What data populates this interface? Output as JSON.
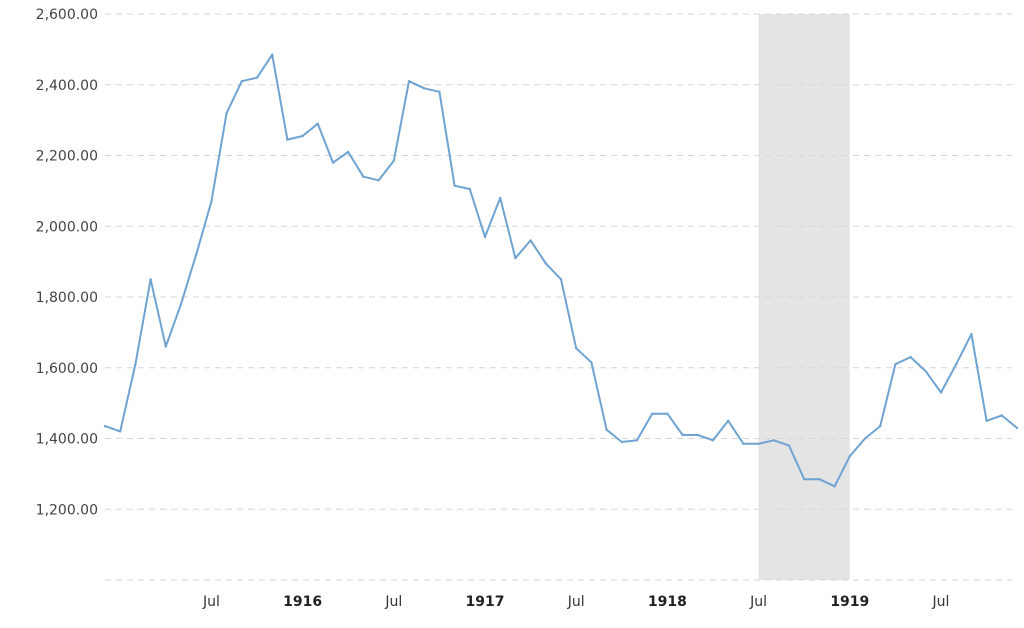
{
  "chart_data": {
    "type": "line",
    "title": "",
    "xlabel": "",
    "ylabel": "",
    "ylim": [
      1000,
      2600
    ],
    "grid": true,
    "y_ticks": [
      "1,200.00",
      "1,400.00",
      "1,600.00",
      "1,800.00",
      "2,000.00",
      "2,200.00",
      "2,400.00",
      "2,600.00"
    ],
    "y_tick_values": [
      1200,
      1400,
      1600,
      1800,
      2000,
      2200,
      2400,
      2600
    ],
    "x_ticks": [
      {
        "label": "Jul",
        "date": "1915-07",
        "major": false
      },
      {
        "label": "1916",
        "date": "1916-01",
        "major": true
      },
      {
        "label": "Jul",
        "date": "1916-07",
        "major": false
      },
      {
        "label": "1917",
        "date": "1917-01",
        "major": true
      },
      {
        "label": "Jul",
        "date": "1917-07",
        "major": false
      },
      {
        "label": "1918",
        "date": "1918-01",
        "major": true
      },
      {
        "label": "Jul",
        "date": "1918-07",
        "major": false
      },
      {
        "label": "1919",
        "date": "1919-01",
        "major": true
      },
      {
        "label": "Jul",
        "date": "1919-07",
        "major": false
      }
    ],
    "shaded_ranges": [
      {
        "start": "1918-07",
        "end": "1919-01",
        "color": "#e4e4e4"
      }
    ],
    "series": [
      {
        "color": "#6fa3d1",
        "x": [
          "1914-12",
          "1915-01",
          "1915-02",
          "1915-03",
          "1915-04",
          "1915-05",
          "1915-06",
          "1915-07",
          "1915-08",
          "1915-09",
          "1915-10",
          "1915-11",
          "1915-12",
          "1916-01",
          "1916-02",
          "1916-03",
          "1916-04",
          "1916-05",
          "1916-06",
          "1916-07",
          "1916-08",
          "1916-09",
          "1916-10",
          "1916-11",
          "1916-12",
          "1917-01",
          "1917-02",
          "1917-03",
          "1917-04",
          "1917-05",
          "1917-06",
          "1917-07",
          "1917-08",
          "1917-09",
          "1917-10",
          "1917-11",
          "1917-12",
          "1918-01",
          "1918-02",
          "1918-03",
          "1918-04",
          "1918-05",
          "1918-06",
          "1918-07",
          "1918-08",
          "1918-09",
          "1918-10",
          "1918-11",
          "1918-12",
          "1919-01",
          "1919-02",
          "1919-03",
          "1919-04",
          "1919-05",
          "1919-06",
          "1919-07",
          "1919-08",
          "1919-09",
          "1919-10",
          "1919-11",
          "1919-12"
        ],
        "values": [
          1435,
          1420,
          1610,
          1850,
          1660,
          1780,
          1920,
          2070,
          2320,
          2410,
          2420,
          2485,
          2245,
          2255,
          2290,
          2180,
          2210,
          2140,
          2130,
          2185,
          2410,
          2390,
          2380,
          2115,
          2105,
          1970,
          2080,
          1910,
          1960,
          1895,
          1850,
          1655,
          1615,
          1425,
          1390,
          1395,
          1470,
          1470,
          1410,
          1410,
          1395,
          1450,
          1385,
          1385,
          1395,
          1380,
          1285,
          1285,
          1265,
          1350,
          1400,
          1435,
          1610,
          1630,
          1590,
          1530,
          1610,
          1695,
          1450,
          1465,
          1430
        ]
      }
    ]
  }
}
